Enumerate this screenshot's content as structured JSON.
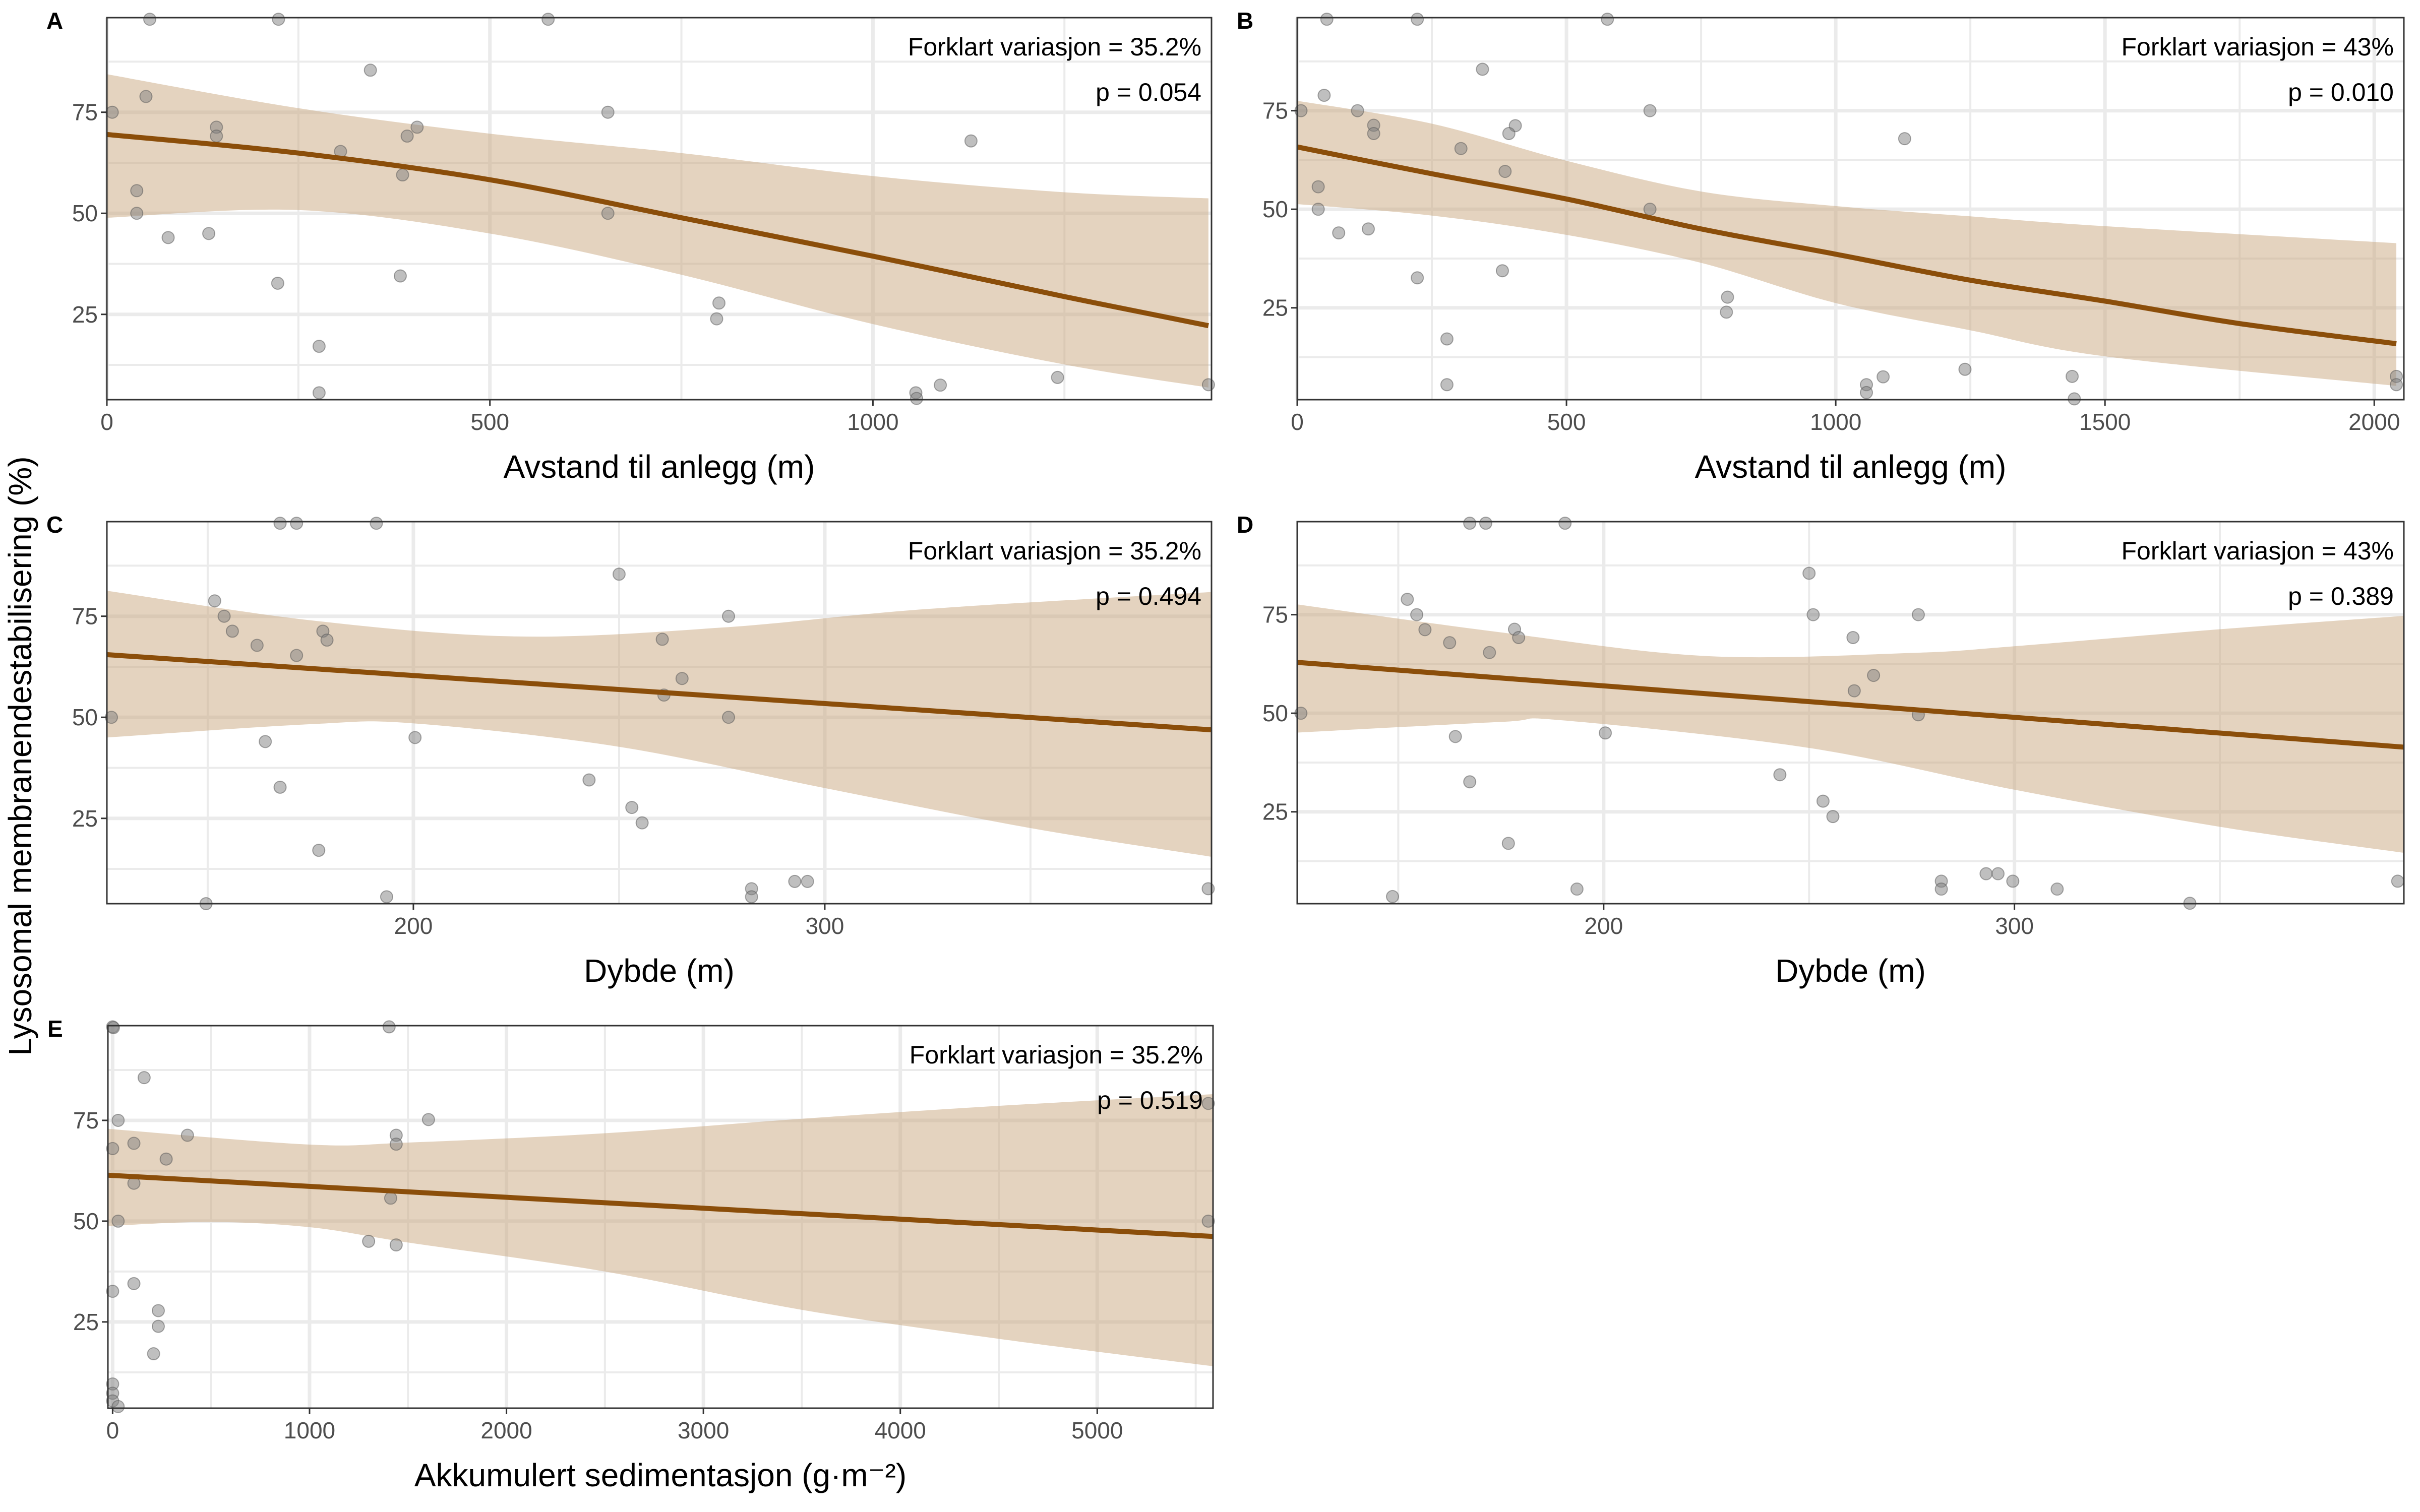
{
  "shared_ylabel": "Lysosomal membranendestabilisering (%)",
  "colors": {
    "line": "#8B4E0A",
    "band": "#E2D3C2",
    "points": "#808080",
    "grid": "#EBEBEB",
    "frame": "#333333"
  },
  "chart_data": [
    {
      "tag": "A",
      "type": "scatter",
      "xlabel": "Avstand til anlegg (m)",
      "xlim": [
        0,
        1442
      ],
      "ylim": [
        3.9,
        98.4
      ],
      "xticks": [
        0,
        500,
        1000
      ],
      "yticks": [
        25,
        50,
        75
      ],
      "annotation": [
        "Forklart variasjon = 35.2%",
        "p = 0.054"
      ],
      "points": [
        [
          56,
          98
        ],
        [
          224,
          98
        ],
        [
          576,
          98
        ],
        [
          344,
          85.4
        ],
        [
          51,
          78.9
        ],
        [
          7,
          75
        ],
        [
          654,
          75
        ],
        [
          143,
          71.3
        ],
        [
          143,
          69.1
        ],
        [
          405,
          71.3
        ],
        [
          392,
          69.1
        ],
        [
          305,
          65.3
        ],
        [
          1128,
          67.9
        ],
        [
          386,
          59.5
        ],
        [
          39,
          55.6
        ],
        [
          39,
          50
        ],
        [
          654,
          50
        ],
        [
          80,
          44
        ],
        [
          133,
          45
        ],
        [
          383,
          34.5
        ],
        [
          223,
          32.7
        ],
        [
          799,
          27.8
        ],
        [
          796,
          23.9
        ],
        [
          277,
          17.1
        ],
        [
          277,
          5.6
        ],
        [
          1056,
          5.6
        ],
        [
          1057,
          4.2
        ],
        [
          1088,
          7.5
        ],
        [
          1241,
          9.4
        ],
        [
          1438,
          7.6
        ]
      ],
      "fit": [
        [
          0,
          69.5
        ],
        [
          250,
          64.9
        ],
        [
          500,
          58.3
        ],
        [
          750,
          48.9
        ],
        [
          1000,
          39.4
        ],
        [
          1250,
          29.4
        ],
        [
          1438,
          22.2
        ]
      ],
      "upper": [
        [
          0,
          84.4
        ],
        [
          250,
          76
        ],
        [
          500,
          69.7
        ],
        [
          750,
          64.9
        ],
        [
          1000,
          59.2
        ],
        [
          1250,
          55.2
        ],
        [
          1438,
          53.7
        ]
      ],
      "lower": [
        [
          0,
          48.9
        ],
        [
          250,
          50.8
        ],
        [
          500,
          45
        ],
        [
          750,
          34.8
        ],
        [
          1000,
          22.6
        ],
        [
          1250,
          12.6
        ],
        [
          1438,
          6.9
        ]
      ]
    },
    {
      "tag": "B",
      "type": "scatter",
      "xlabel": "Avstand til anlegg (m)",
      "xlim": [
        0,
        2055
      ],
      "ylim": [
        1.7,
        98.6
      ],
      "xticks": [
        0,
        500,
        1000,
        1500,
        2000
      ],
      "yticks": [
        25,
        50,
        75
      ],
      "annotation": [
        "Forklart variasjon = 43%",
        "p = 0.010"
      ],
      "points": [
        [
          55,
          98.2
        ],
        [
          223,
          98.2
        ],
        [
          576,
          98.2
        ],
        [
          344,
          85.5
        ],
        [
          50,
          78.9
        ],
        [
          7,
          75
        ],
        [
          112,
          75
        ],
        [
          655,
          75
        ],
        [
          142,
          71.3
        ],
        [
          142,
          69.2
        ],
        [
          405,
          71.2
        ],
        [
          393,
          69.2
        ],
        [
          304,
          65.4
        ],
        [
          1128,
          67.9
        ],
        [
          386,
          59.6
        ],
        [
          39,
          55.7
        ],
        [
          39,
          50
        ],
        [
          655,
          50
        ],
        [
          77,
          44
        ],
        [
          132,
          45
        ],
        [
          381,
          34.4
        ],
        [
          223,
          32.6
        ],
        [
          799,
          27.7
        ],
        [
          797,
          23.9
        ],
        [
          278,
          17.1
        ],
        [
          278,
          5.5
        ],
        [
          1057,
          5.5
        ],
        [
          1057,
          3.5
        ],
        [
          1088,
          7.5
        ],
        [
          1240,
          9.4
        ],
        [
          1439,
          7.6
        ],
        [
          1443,
          1.9
        ],
        [
          2041,
          7.6
        ],
        [
          2041,
          5.5
        ]
      ],
      "fit": [
        [
          0,
          65.8
        ],
        [
          250,
          59
        ],
        [
          500,
          52.6
        ],
        [
          750,
          45
        ],
        [
          1000,
          38.6
        ],
        [
          1250,
          32
        ],
        [
          1500,
          26.7
        ],
        [
          1750,
          21
        ],
        [
          2041,
          15.9
        ]
      ],
      "upper": [
        [
          0,
          77.5
        ],
        [
          250,
          71.7
        ],
        [
          500,
          62.3
        ],
        [
          750,
          54.5
        ],
        [
          1000,
          50.8
        ],
        [
          1250,
          48.2
        ],
        [
          1500,
          45.7
        ],
        [
          2041,
          41.4
        ]
      ],
      "lower": [
        [
          0,
          51.3
        ],
        [
          250,
          48.4
        ],
        [
          500,
          43.5
        ],
        [
          750,
          36.4
        ],
        [
          1000,
          26.2
        ],
        [
          1250,
          19.3
        ],
        [
          1500,
          12.7
        ],
        [
          2041,
          5.2
        ]
      ]
    },
    {
      "tag": "C",
      "type": "scatter",
      "xlabel": "Dybde (m)",
      "xlim": [
        125.5,
        394
      ],
      "ylim": [
        3.9,
        98.4
      ],
      "xticks": [
        200,
        300
      ],
      "yticks": [
        25,
        50,
        75
      ],
      "annotation": [
        "Forklart variasjon = 35.2%",
        "p = 0.494"
      ],
      "points": [
        [
          167.6,
          98
        ],
        [
          171.6,
          98
        ],
        [
          191,
          98
        ],
        [
          250,
          85.4
        ],
        [
          151.7,
          78.8
        ],
        [
          154,
          75
        ],
        [
          276.6,
          75
        ],
        [
          156,
          71.3
        ],
        [
          178,
          71.3
        ],
        [
          179,
          69.1
        ],
        [
          260.5,
          69.3
        ],
        [
          162,
          67.8
        ],
        [
          171.6,
          65.3
        ],
        [
          265.3,
          59.6
        ],
        [
          260.9,
          55.5
        ],
        [
          126.6,
          50
        ],
        [
          276.6,
          50
        ],
        [
          164,
          44
        ],
        [
          200.4,
          45
        ],
        [
          242.7,
          34.5
        ],
        [
          167.6,
          32.7
        ],
        [
          253.1,
          27.7
        ],
        [
          255.6,
          23.9
        ],
        [
          177,
          17.1
        ],
        [
          193.5,
          5.6
        ],
        [
          149.6,
          3.9
        ],
        [
          282.2,
          7.6
        ],
        [
          282.2,
          5.6
        ],
        [
          292.7,
          9.4
        ],
        [
          295.8,
          9.4
        ],
        [
          393.2,
          7.6
        ]
      ],
      "fit": [
        [
          125.5,
          65.5
        ],
        [
          394,
          46.9
        ]
      ],
      "upper": [
        [
          125.5,
          81.3
        ],
        [
          175,
          74
        ],
        [
          225,
          70
        ],
        [
          275,
          72.2
        ],
        [
          325,
          76.8
        ],
        [
          394,
          81
        ]
      ],
      "lower": [
        [
          125.5,
          45
        ],
        [
          175,
          48.3
        ],
        [
          200,
          48.5
        ],
        [
          250,
          42.7
        ],
        [
          300,
          32.5
        ],
        [
          350,
          22.6
        ],
        [
          394,
          15.5
        ]
      ]
    },
    {
      "tag": "D",
      "type": "scatter",
      "xlabel": "Dybde (m)",
      "xlim": [
        125.4,
        394.8
      ],
      "ylim": [
        1.7,
        98.6
      ],
      "xticks": [
        200,
        300
      ],
      "yticks": [
        25,
        50,
        75
      ],
      "annotation": [
        "Forklart variasjon = 43%",
        "p = 0.389"
      ],
      "points": [
        [
          167.4,
          98.2
        ],
        [
          171.3,
          98.2
        ],
        [
          190.6,
          98.2
        ],
        [
          250,
          85.5
        ],
        [
          152.2,
          78.9
        ],
        [
          154.5,
          75
        ],
        [
          251,
          75
        ],
        [
          276.6,
          75
        ],
        [
          156.5,
          71.2
        ],
        [
          178.3,
          71.3
        ],
        [
          179.3,
          69.2
        ],
        [
          260.7,
          69.2
        ],
        [
          162.5,
          67.9
        ],
        [
          172.2,
          65.4
        ],
        [
          265.7,
          59.6
        ],
        [
          261,
          55.7
        ],
        [
          126.3,
          50
        ],
        [
          276.6,
          49.6
        ],
        [
          163.9,
          44.1
        ],
        [
          200.4,
          45
        ],
        [
          242.9,
          34.4
        ],
        [
          167.4,
          32.6
        ],
        [
          253.4,
          27.7
        ],
        [
          255.8,
          23.8
        ],
        [
          176.8,
          17
        ],
        [
          193.5,
          5.4
        ],
        [
          148.6,
          3.5
        ],
        [
          282.2,
          7.4
        ],
        [
          282.2,
          5.4
        ],
        [
          293.1,
          9.3
        ],
        [
          296,
          9.3
        ],
        [
          299.6,
          7.4
        ],
        [
          310.4,
          5.4
        ],
        [
          342.7,
          1.8
        ],
        [
          393.3,
          7.4
        ]
      ],
      "fit": [
        [
          125.4,
          62.9
        ],
        [
          394.8,
          41.4
        ]
      ],
      "upper": [
        [
          125.4,
          77.6
        ],
        [
          175,
          70.5
        ],
        [
          225,
          64.5
        ],
        [
          275,
          65.3
        ],
        [
          300,
          67
        ],
        [
          350,
          71.3
        ],
        [
          394.8,
          74.7
        ]
      ],
      "lower": [
        [
          125.4,
          45.1
        ],
        [
          175,
          47.8
        ],
        [
          190,
          48.2
        ],
        [
          250,
          41.2
        ],
        [
          300,
          30.6
        ],
        [
          350,
          21.2
        ],
        [
          394.8,
          14.6
        ]
      ]
    },
    {
      "tag": "E",
      "type": "scatter",
      "xlabel": "Akkumulert sedimentasjon (g·m⁻²)",
      "xlim": [
        -24,
        5588
      ],
      "ylim": [
        3.6,
        98.5
      ],
      "xticks": [
        0,
        1000,
        2000,
        3000,
        4000,
        5000
      ],
      "yticks": [
        25,
        50,
        75
      ],
      "annotation": [
        "Forklart variasjon = 35.2%",
        "p = 0.519"
      ],
      "points": [
        [
          0,
          98.2
        ],
        [
          4,
          98
        ],
        [
          1404,
          98.2
        ],
        [
          160,
          85.6
        ],
        [
          28,
          75
        ],
        [
          1604,
          75.2
        ],
        [
          380,
          71.3
        ],
        [
          1440,
          71.3
        ],
        [
          1440,
          69.1
        ],
        [
          108,
          69.3
        ],
        [
          0,
          68
        ],
        [
          272,
          65.4
        ],
        [
          108,
          59.4
        ],
        [
          1412,
          55.7
        ],
        [
          28,
          50
        ],
        [
          5564,
          50
        ],
        [
          5564,
          79.2
        ],
        [
          1300,
          45
        ],
        [
          1440,
          44.1
        ],
        [
          108,
          34.5
        ],
        [
          0,
          32.6
        ],
        [
          232,
          27.8
        ],
        [
          232,
          23.9
        ],
        [
          208,
          17.1
        ],
        [
          0,
          9.6
        ],
        [
          0,
          7.3
        ],
        [
          0,
          5.4
        ],
        [
          28,
          4
        ]
      ],
      "fit": [
        [
          -24,
          61.4
        ],
        [
          5588,
          46.2
        ]
      ],
      "upper": [
        [
          -24,
          72.9
        ],
        [
          1000,
          69
        ],
        [
          1500,
          69.5
        ],
        [
          2500,
          71.8
        ],
        [
          3500,
          75.4
        ],
        [
          4500,
          78.6
        ],
        [
          5588,
          81.5
        ]
      ],
      "lower": [
        [
          -24,
          48.8
        ],
        [
          500,
          49.8
        ],
        [
          1000,
          48.5
        ],
        [
          1500,
          44.7
        ],
        [
          2500,
          37.5
        ],
        [
          3500,
          28
        ],
        [
          4500,
          20.8
        ],
        [
          5588,
          14
        ]
      ]
    }
  ]
}
